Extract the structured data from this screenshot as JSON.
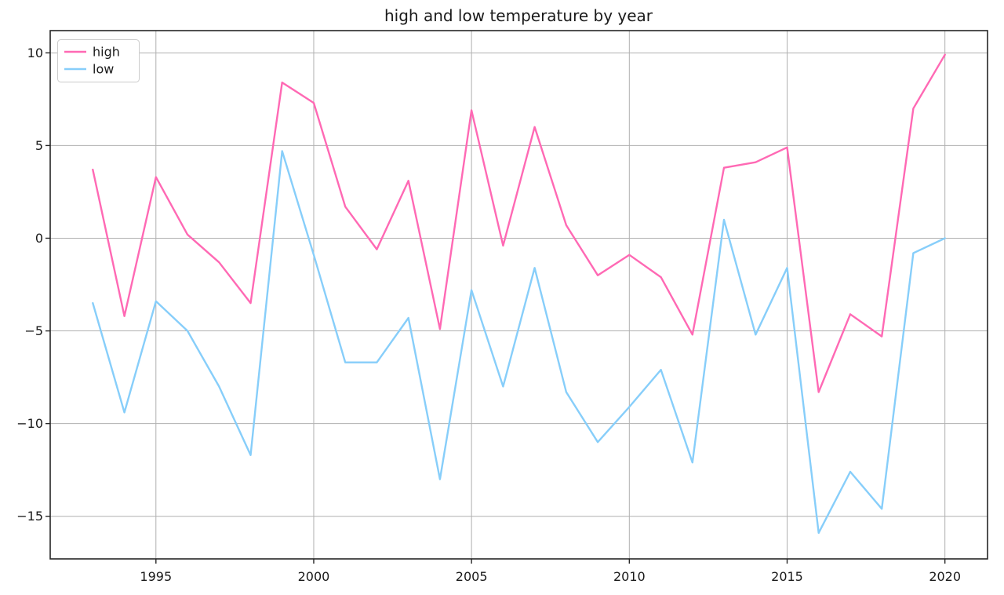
{
  "figure": {
    "background": "#ffffff"
  },
  "chart_data": {
    "type": "line",
    "title": "high and low temperature by year",
    "xlabel": "",
    "ylabel": "",
    "x": [
      1993,
      1994,
      1995,
      1996,
      1997,
      1998,
      1999,
      2000,
      2001,
      2002,
      2003,
      2004,
      2005,
      2006,
      2007,
      2008,
      2009,
      2010,
      2011,
      2012,
      2013,
      2014,
      2015,
      2016,
      2017,
      2018,
      2019,
      2020
    ],
    "series": [
      {
        "name": "high",
        "color": "#FF69B4",
        "values": [
          3.7,
          -4.2,
          3.3,
          0.2,
          -1.3,
          -3.5,
          8.4,
          7.3,
          1.7,
          -0.6,
          3.1,
          -4.9,
          6.9,
          -0.4,
          6.0,
          0.7,
          -2.0,
          -0.9,
          -2.1,
          -5.2,
          3.8,
          4.1,
          4.9,
          -8.3,
          -4.1,
          -5.3,
          7.0,
          9.9
        ]
      },
      {
        "name": "low",
        "color": "#87CEFA",
        "values": [
          -3.5,
          -9.4,
          -3.4,
          -5.0,
          -8.0,
          -11.7,
          4.7,
          -0.9,
          -6.7,
          -6.7,
          -4.3,
          -13.0,
          -2.8,
          -8.0,
          -1.6,
          -8.3,
          -11.0,
          -9.1,
          -7.1,
          -12.1,
          1.0,
          -5.2,
          -1.6,
          -15.9,
          -12.6,
          -14.6,
          -0.8,
          0.0
        ]
      }
    ],
    "xticks": [
      1995,
      2000,
      2005,
      2010,
      2015,
      2020
    ],
    "yticks": [
      -15,
      -10,
      -5,
      0,
      5,
      10
    ],
    "xlim": [
      1991.65,
      2021.35
    ],
    "ylim": [
      -17.3,
      11.2
    ],
    "grid": true,
    "legend": {
      "position": "upper-left"
    }
  },
  "style": {
    "grid_color": "#b0b0b0",
    "spine_color": "#262626",
    "tick_color": "#262626",
    "tick_label_color": "#1a1a1a",
    "title_color": "#1a1a1a",
    "legend_border_color": "#cccccc",
    "legend_bg": "#ffffff"
  }
}
